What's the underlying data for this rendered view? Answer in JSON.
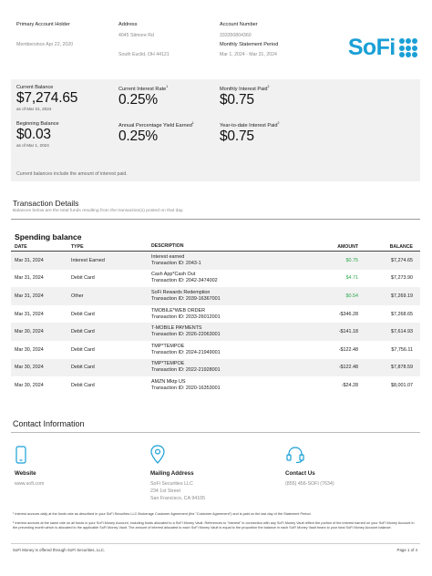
{
  "header": {
    "holder_label": "Primary Account Holder",
    "member_since": "Membersince Apr 22, 2020",
    "address_label": "Address",
    "address_line1": "4045 Stimore Rd",
    "address_line2": "South Euclid, OH 44121",
    "account_number_label": "Account Number",
    "account_number": "333350804360",
    "period_label": "Monthly Statement Period",
    "period_value": "Mar 1, 2024 - Mar 31, 2024",
    "logo_text": "SoFi",
    "brand_color": "#1a9fd6"
  },
  "balances": {
    "current_balance_label": "Current Balance",
    "current_balance": "$7,274.65",
    "current_balance_asof": "as of Mar 31, 2024",
    "interest_rate_label": "Current Interest Rate",
    "interest_rate": "0.25%",
    "monthly_interest_label": "Monthly Interest Paid",
    "monthly_interest": "$0.75",
    "beginning_balance_label": "Beginning Balance",
    "beginning_balance": "$0.03",
    "beginning_balance_asof": "as of Mar 1, 2024",
    "apy_label": "Annual Percentage Yield Earned",
    "apy": "0.25%",
    "ytd_interest_label": "Year-to-date Interest Paid",
    "ytd_interest": "$0.75",
    "note": "Current balances include the amount of interest paid."
  },
  "transactions": {
    "title": "Transaction Details",
    "subtitle": "Balances below are the total funds resulting from the transaction(s) posted on that day.",
    "section_title": "Spending balance",
    "columns": [
      "DATE",
      "TYPE",
      "DESCRIPTION",
      "AMOUNT",
      "BALANCE"
    ],
    "rows": [
      {
        "date": "Mar 31, 2024",
        "type": "Interest Earned",
        "desc1": "Interest earned",
        "desc2": "Transaction ID: 2043-1",
        "amount": "$0.75",
        "balance": "$7,274.65",
        "positive": true
      },
      {
        "date": "Mar 31, 2024",
        "type": "Debit Card",
        "desc1": "Cash App*Cash Out",
        "desc2": "Transaction ID: 2042-3474002",
        "amount": "$4.71",
        "balance": "$7,273.90",
        "positive": true
      },
      {
        "date": "Mar 31, 2024",
        "type": "Other",
        "desc1": "SoFi Rewards Redemption",
        "desc2": "Transaction ID: 2039-16367001",
        "amount": "$0.54",
        "balance": "$7,269.19",
        "positive": true
      },
      {
        "date": "Mar 31, 2024",
        "type": "Debit Card",
        "desc1": "TMOBILE*WEB ORDER",
        "desc2": "Transaction ID: 2033-26012001",
        "amount": "-$346.28",
        "balance": "$7,268.65",
        "positive": false
      },
      {
        "date": "Mar 30, 2024",
        "type": "Debit Card",
        "desc1": "T-MOBILE PAYMENTS",
        "desc2": "Transaction ID: 2026-22063001",
        "amount": "-$141.18",
        "balance": "$7,614.93",
        "positive": false
      },
      {
        "date": "Mar 30, 2024",
        "type": "Debit Card",
        "desc1": "TMP*TEMPOE",
        "desc2": "Transaction ID: 2024-21949001",
        "amount": "-$122.48",
        "balance": "$7,756.11",
        "positive": false
      },
      {
        "date": "Mar 30, 2024",
        "type": "Debit Card",
        "desc1": "TMP*TEMPOE",
        "desc2": "Transaction ID: 2022-21928001",
        "amount": "-$122.48",
        "balance": "$7,878.59",
        "positive": false
      },
      {
        "date": "Mar 30, 2024",
        "type": "Debit Card",
        "desc1": "AMZN Mktp US",
        "desc2": "Transaction ID: 2020-16353001",
        "amount": "-$24.28",
        "balance": "$8,001.07",
        "positive": false
      }
    ]
  },
  "contact": {
    "title": "Contact Information",
    "website_label": "Website",
    "website_value": "www.sofi.com",
    "mailing_label": "Mailing Address",
    "mailing_line1": "SoFi Securities LLC",
    "mailing_line2": "234 1st Street",
    "mailing_line3": "San Francisco, CA 94105",
    "contact_label": "Contact Us",
    "contact_value": "(855) 456-SOFI (7634)"
  },
  "footnotes": {
    "note1": "¹ Interest accrues daily at the funds rate as described in your SoFi Securities LLC Brokerage Customer Agreement (the \"Customer Agreement\") and is paid on the last day of the Statement Period.",
    "note2": "² Interest accrues at the same rate on all funds in your SoFi Money Account, including funds allocated to a SoFi Money Vault. References to \"interest\" in connection with any SoFi Money Vault reflect the portion of the interest earned on your SoFi Money Account in the preceding month which is allocated to the applicable SoFi Money Vault. The amount of interest allocated to each SoFi Money Vault is equal to the proportion the balance in each SoFi Money Vault bears to your total SoFi Money Account balance.",
    "disclosure": "SoFi Money is offered through SoFi Securities, LLC.",
    "page": "Page 1 of 4"
  }
}
